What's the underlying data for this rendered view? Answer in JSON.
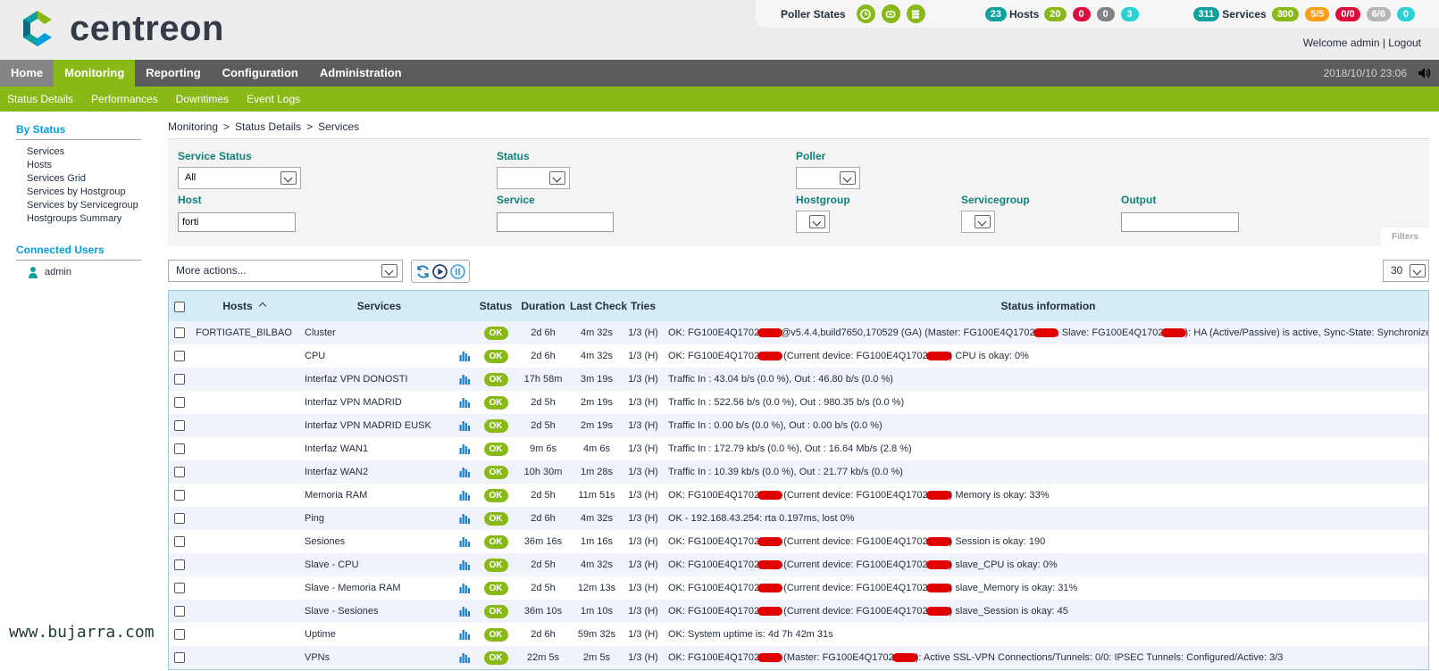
{
  "brand": {
    "logo_text": "centreon"
  },
  "poller": {
    "label": "Poller States",
    "icons": [
      "clock-icon",
      "database-icon",
      "server-icon"
    ]
  },
  "hosts_summary": {
    "total": "23",
    "label": "Hosts",
    "up": "20",
    "down": "0",
    "unreachable": "0",
    "pending": "3"
  },
  "services_summary": {
    "total": "311",
    "label": "Services",
    "ok": "300",
    "warning": "5/5",
    "critical": "0/0",
    "unknown": "6/6",
    "pending": "0"
  },
  "welcome": {
    "text": "Welcome admin",
    "sep": " | ",
    "logout": "Logout"
  },
  "nav": {
    "tabs": [
      "Home",
      "Monitoring",
      "Reporting",
      "Configuration",
      "Administration"
    ],
    "datetime": "2018/10/10 23:06"
  },
  "subnav": {
    "items": [
      "Status Details",
      "Performances",
      "Downtimes",
      "Event Logs"
    ]
  },
  "sidebar": {
    "by_status": {
      "title": "By Status",
      "links": [
        "Services",
        "Hosts",
        "Services Grid",
        "Services by Hostgroup",
        "Services by Servicegroup",
        "Hostgroups Summary"
      ]
    },
    "connected": {
      "title": "Connected Users",
      "user": "admin"
    }
  },
  "watermark": "www.bujarra.com",
  "breadcrumb": [
    "Monitoring",
    "Status Details",
    "Services"
  ],
  "filters": {
    "service_status": {
      "label": "Service Status",
      "value": "All"
    },
    "status": {
      "label": "Status",
      "value": ""
    },
    "poller": {
      "label": "Poller",
      "value": ""
    },
    "host": {
      "label": "Host",
      "value": "forti"
    },
    "service": {
      "label": "Service",
      "value": ""
    },
    "hostgroup": {
      "label": "Hostgroup",
      "value": ""
    },
    "servicegroup": {
      "label": "Servicegroup",
      "value": ""
    },
    "output": {
      "label": "Output",
      "value": ""
    },
    "tab_label": "Filters"
  },
  "actions": {
    "label": "More actions...",
    "per_page": "30"
  },
  "table": {
    "headers": {
      "hosts": "Hosts",
      "services": "Services",
      "status": "Status",
      "duration": "Duration",
      "last_check": "Last Check",
      "tries": "Tries",
      "info": "Status information"
    },
    "rows": [
      {
        "host": "FORTIGATE_BILBAO",
        "service": "Cluster",
        "graph": false,
        "status": "OK",
        "duration": "2d 6h",
        "last_check": "4m 32s",
        "tries": "1/3 (H)",
        "info": [
          "OK: FG100E4Q1702",
          "@v5.4.4,build7650,170529 (GA) (Master: FG100E4Q1702",
          ", Slave: FG100E4Q1702",
          "): HA (Active/Passive) is active, Sync-State: Synchronized"
        ]
      },
      {
        "host": "",
        "service": "CPU",
        "graph": true,
        "status": "OK",
        "duration": "2d 6h",
        "last_check": "4m 32s",
        "tries": "1/3 (H)",
        "info": [
          "OK: FG100E4Q1702",
          " (Current device: FG100E4Q1702",
          ") CPU is okay: 0%"
        ]
      },
      {
        "host": "",
        "service": "Interfaz VPN DONOSTI",
        "graph": true,
        "status": "OK",
        "duration": "17h 58m",
        "last_check": "3m 19s",
        "tries": "1/3 (H)",
        "info": [
          "Traffic In : 43.04 b/s (0.0 %), Out : 46.80 b/s (0.0 %)"
        ]
      },
      {
        "host": "",
        "service": "Interfaz VPN MADRID",
        "graph": true,
        "status": "OK",
        "duration": "2d 5h",
        "last_check": "2m 19s",
        "tries": "1/3 (H)",
        "info": [
          "Traffic In : 522.56 b/s (0.0 %), Out : 980.35 b/s (0.0 %)"
        ]
      },
      {
        "host": "",
        "service": "Interfaz VPN MADRID EUSK",
        "graph": true,
        "status": "OK",
        "duration": "2d 5h",
        "last_check": "2m 19s",
        "tries": "1/3 (H)",
        "info": [
          "Traffic In : 0.00 b/s (0.0 %), Out : 0.00 b/s (0.0 %)"
        ]
      },
      {
        "host": "",
        "service": "Interfaz WAN1",
        "graph": true,
        "status": "OK",
        "duration": "9m 6s",
        "last_check": "4m 6s",
        "tries": "1/3 (H)",
        "info": [
          "Traffic In : 172.79 kb/s (0.0 %), Out : 16.64 Mb/s (2.8 %)"
        ]
      },
      {
        "host": "",
        "service": "Interfaz WAN2",
        "graph": true,
        "status": "OK",
        "duration": "10h 30m",
        "last_check": "1m 28s",
        "tries": "1/3 (H)",
        "info": [
          "Traffic In : 10.39 kb/s (0.0 %), Out : 21.77 kb/s (0.0 %)"
        ]
      },
      {
        "host": "",
        "service": "Memoria RAM",
        "graph": true,
        "status": "OK",
        "duration": "2d 5h",
        "last_check": "11m 51s",
        "tries": "1/3 (H)",
        "info": [
          "OK: FG100E4Q1702",
          " (Current device: FG100E4Q1702",
          ") Memory is okay: 33%"
        ]
      },
      {
        "host": "",
        "service": "Ping",
        "graph": true,
        "status": "OK",
        "duration": "2d 6h",
        "last_check": "4m 32s",
        "tries": "1/3 (H)",
        "info": [
          "OK - 192.168.43.254: rta 0.197ms, lost 0%"
        ]
      },
      {
        "host": "",
        "service": "Sesiones",
        "graph": true,
        "status": "OK",
        "duration": "36m 16s",
        "last_check": "1m 16s",
        "tries": "1/3 (H)",
        "info": [
          "OK: FG100E4Q1702",
          " (Current device: FG100E4Q1702",
          ") Session is okay: 190"
        ]
      },
      {
        "host": "",
        "service": "Slave - CPU",
        "graph": true,
        "status": "OK",
        "duration": "2d 5h",
        "last_check": "4m 32s",
        "tries": "1/3 (H)",
        "info": [
          "OK: FG100E4Q1702",
          " (Current device: FG100E4Q1702",
          ") slave_CPU is okay: 0%"
        ]
      },
      {
        "host": "",
        "service": "Slave - Memoria RAM",
        "graph": true,
        "status": "OK",
        "duration": "2d 5h",
        "last_check": "12m 13s",
        "tries": "1/3 (H)",
        "info": [
          "OK: FG100E4Q1702",
          " (Current device: FG100E4Q1702",
          ") slave_Memory is okay: 31%"
        ]
      },
      {
        "host": "",
        "service": "Slave - Sesiones",
        "graph": true,
        "status": "OK",
        "duration": "36m 10s",
        "last_check": "1m 10s",
        "tries": "1/3 (H)",
        "info": [
          "OK: FG100E4Q1702",
          " (Current device: FG100E4Q1702",
          ") slave_Session is okay: 45"
        ]
      },
      {
        "host": "",
        "service": "Uptime",
        "graph": true,
        "status": "OK",
        "duration": "2d 6h",
        "last_check": "59m 32s",
        "tries": "1/3 (H)",
        "info": [
          "OK: System uptime is: 4d 7h 42m 31s"
        ]
      },
      {
        "host": "",
        "service": "VPNs",
        "graph": true,
        "status": "OK",
        "duration": "22m 5s",
        "last_check": "2m 5s",
        "tries": "1/3 (H)",
        "info": [
          "OK: FG100E4Q1702",
          " (Master: FG100E4Q1702",
          "): Active SSL-VPN Connections/Tunnels: 0/0: IPSEC Tunnels: Configured/Active: 3/3"
        ]
      }
    ]
  },
  "colors": {
    "brand_green": "#88b917",
    "teal": "#10a19e",
    "critical": "#e00b3d",
    "link_blue": "#009fdf"
  }
}
